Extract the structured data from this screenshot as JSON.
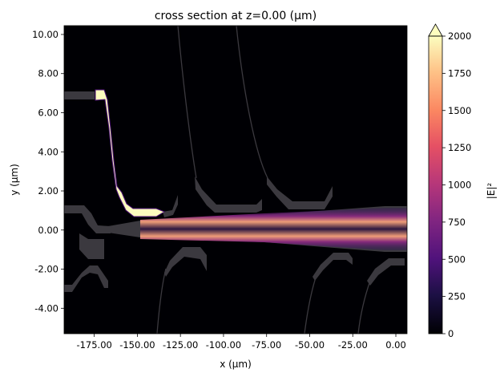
{
  "chart_data": {
    "type": "heatmap",
    "title": "cross section at z=0.00 (μm)",
    "xlabel": "x (μm)",
    "ylabel": "y (μm)",
    "xlim": [
      -192.5,
      6.5
    ],
    "ylim": [
      -5.3,
      10.45
    ],
    "x_ticks": [
      -175,
      -150,
      -125,
      -100,
      -75,
      -50,
      -25,
      0
    ],
    "x_tick_labels": [
      "-175.00",
      "-150.00",
      "-125.00",
      "-100.00",
      "-75.00",
      "-50.00",
      "-25.00",
      "0.00"
    ],
    "y_ticks": [
      -4,
      -2,
      0,
      2,
      4,
      6,
      8,
      10
    ],
    "y_tick_labels": [
      "-4.00",
      "-2.00",
      "0.00",
      "2.00",
      "4.00",
      "6.00",
      "8.00",
      "10.00"
    ],
    "colormap": "magma",
    "colorbar": {
      "label": "|E|²",
      "range": [
        0,
        2000
      ],
      "extend": "max",
      "ticks": [
        0,
        250,
        500,
        750,
        1000,
        1250,
        1500,
        1750,
        2000
      ],
      "tick_labels": [
        "0",
        "250",
        "500",
        "750",
        "1000",
        "1250",
        "1500",
        "1750",
        "2000"
      ]
    },
    "grid": false,
    "colors": {
      "background": "#000004",
      "structure": "#3b393f",
      "high": "#fcfdbf"
    }
  }
}
